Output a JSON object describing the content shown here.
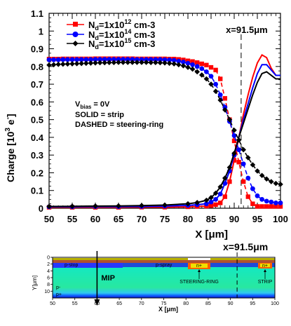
{
  "chart_data": [
    {
      "type": "line",
      "ylabel": "Charge [10",
      "ylabel_sup": "3",
      "ylabel_tail": " e",
      "ylabel_sup2": "-",
      "ylabel_end": "]",
      "xlabel": "X [μm]",
      "xlim": [
        50,
        100
      ],
      "ylim": [
        0,
        1.1
      ],
      "x_ticks": [
        "50",
        "55",
        "60",
        "65",
        "70",
        "75",
        "80",
        "85",
        "90",
        "95",
        "100"
      ],
      "y_ticks": [
        "0",
        "0.1",
        "0.2",
        "0.3",
        "0.4",
        "0.5",
        "0.6",
        "0.7",
        "0.8",
        "0.9",
        "1",
        "1.1"
      ],
      "grid": false,
      "legend": "top-left",
      "vline": {
        "x": 91.5,
        "label": "x=91.5μm"
      },
      "annotations": {
        "vbias_prefix": "V",
        "vbias_sub": "bias",
        "vbias_suffix": " = 0V",
        "solid": "SOLID = strip",
        "dashed": "DASHED = steering-ring"
      },
      "series": [
        {
          "name_prefix": "N",
          "name_sub": "d",
          "name_mid": "=1x10",
          "name_sup": "12",
          "name_unit": " cm-3",
          "color": "#ff0000",
          "marker": "square",
          "steering_ring": {
            "x": [
              50,
              51,
              52,
              53,
              54,
              55,
              56,
              57,
              58,
              59,
              60,
              61,
              62,
              63,
              64,
              65,
              66,
              67,
              68,
              69,
              70,
              71,
              72,
              73,
              74,
              75,
              76,
              77,
              78,
              79,
              80,
              81,
              82,
              83,
              84,
              85,
              86,
              87,
              88,
              89,
              90,
              91,
              92,
              93,
              94,
              95,
              96,
              97,
              98,
              99,
              100
            ],
            "y": [
              0.842,
              0.842,
              0.842,
              0.843,
              0.843,
              0.843,
              0.843,
              0.843,
              0.843,
              0.843,
              0.844,
              0.844,
              0.844,
              0.844,
              0.844,
              0.844,
              0.844,
              0.844,
              0.844,
              0.843,
              0.843,
              0.843,
              0.843,
              0.843,
              0.843,
              0.843,
              0.842,
              0.842,
              0.84,
              0.837,
              0.832,
              0.828,
              0.822,
              0.815,
              0.808,
              0.795,
              0.78,
              0.73,
              0.62,
              0.5,
              0.38,
              0.26,
              0.15,
              0.065,
              0.025,
              0.01,
              0.01,
              0.01,
              0.01,
              0.01,
              0.01
            ]
          },
          "strip": {
            "x": [
              50,
              55,
              60,
              65,
              70,
              75,
              80,
              82,
              84,
              85,
              86,
              87,
              88,
              89,
              90,
              91,
              92,
              93,
              94,
              95,
              96,
              97,
              98,
              99,
              100
            ],
            "y": [
              0.005,
              0.005,
              0.005,
              0.005,
              0.006,
              0.006,
              0.008,
              0.01,
              0.012,
              0.015,
              0.02,
              0.03,
              0.065,
              0.15,
              0.27,
              0.4,
              0.53,
              0.64,
              0.74,
              0.82,
              0.865,
              0.85,
              0.79,
              0.75,
              0.75
            ]
          }
        },
        {
          "name_prefix": "N",
          "name_sub": "d",
          "name_mid": "=1x10",
          "name_sup": "14",
          "name_unit": " cm-3",
          "color": "#0000ff",
          "marker": "circle",
          "steering_ring": {
            "x": [
              50,
              51,
              52,
              53,
              54,
              55,
              56,
              57,
              58,
              59,
              60,
              61,
              62,
              63,
              64,
              65,
              66,
              67,
              68,
              69,
              70,
              71,
              72,
              73,
              74,
              75,
              76,
              77,
              78,
              79,
              80,
              81,
              82,
              83,
              84,
              85,
              86,
              87,
              88,
              89,
              90,
              91,
              92,
              93,
              94,
              95,
              96,
              97,
              98,
              99,
              100
            ],
            "y": [
              0.838,
              0.838,
              0.838,
              0.839,
              0.839,
              0.839,
              0.839,
              0.839,
              0.839,
              0.839,
              0.84,
              0.84,
              0.84,
              0.84,
              0.84,
              0.84,
              0.84,
              0.84,
              0.84,
              0.839,
              0.839,
              0.839,
              0.839,
              0.839,
              0.839,
              0.838,
              0.837,
              0.835,
              0.83,
              0.825,
              0.818,
              0.81,
              0.8,
              0.788,
              0.77,
              0.745,
              0.7,
              0.64,
              0.57,
              0.49,
              0.41,
              0.33,
              0.25,
              0.17,
              0.11,
              0.07,
              0.05,
              0.04,
              0.035,
              0.03,
              0.03
            ]
          },
          "strip": {
            "x": [
              50,
              55,
              60,
              65,
              70,
              75,
              80,
              82,
              84,
              85,
              86,
              87,
              88,
              89,
              90,
              91,
              92,
              93,
              94,
              95,
              96,
              97,
              98,
              99,
              100
            ],
            "y": [
              0.008,
              0.008,
              0.009,
              0.009,
              0.01,
              0.012,
              0.016,
              0.02,
              0.025,
              0.035,
              0.05,
              0.08,
              0.14,
              0.21,
              0.3,
              0.4,
              0.5,
              0.59,
              0.68,
              0.76,
              0.81,
              0.81,
              0.78,
              0.75,
              0.75
            ]
          }
        },
        {
          "name_prefix": "N",
          "name_sub": "d",
          "name_mid": "=1x10",
          "name_sup": "15",
          "name_unit": " cm-3",
          "color": "#000000",
          "marker": "diamond",
          "steering_ring": {
            "x": [
              50,
              51,
              52,
              53,
              54,
              55,
              56,
              57,
              58,
              59,
              60,
              61,
              62,
              63,
              64,
              65,
              66,
              67,
              68,
              69,
              70,
              71,
              72,
              73,
              74,
              75,
              76,
              77,
              78,
              79,
              80,
              81,
              82,
              83,
              84,
              85,
              86,
              87,
              88,
              89,
              90,
              91,
              92,
              93,
              94,
              95,
              96,
              97,
              98,
              99,
              100
            ],
            "y": [
              0.808,
              0.81,
              0.812,
              0.813,
              0.814,
              0.815,
              0.816,
              0.817,
              0.818,
              0.819,
              0.82,
              0.821,
              0.821,
              0.822,
              0.822,
              0.823,
              0.823,
              0.823,
              0.823,
              0.823,
              0.823,
              0.823,
              0.822,
              0.822,
              0.821,
              0.82,
              0.818,
              0.815,
              0.81,
              0.804,
              0.795,
              0.785,
              0.77,
              0.752,
              0.73,
              0.7,
              0.66,
              0.61,
              0.555,
              0.5,
              0.44,
              0.385,
              0.33,
              0.285,
              0.245,
              0.21,
              0.185,
              0.165,
              0.15,
              0.14,
              0.135
            ]
          },
          "strip": {
            "x": [
              50,
              55,
              60,
              65,
              70,
              75,
              80,
              82,
              84,
              85,
              86,
              87,
              88,
              89,
              90,
              91,
              92,
              93,
              94,
              95,
              96,
              97,
              98,
              99,
              100
            ],
            "y": [
              0.01,
              0.011,
              0.012,
              0.013,
              0.015,
              0.018,
              0.025,
              0.032,
              0.045,
              0.06,
              0.085,
              0.12,
              0.17,
              0.23,
              0.31,
              0.4,
              0.48,
              0.56,
              0.64,
              0.71,
              0.76,
              0.77,
              0.75,
              0.73,
              0.73
            ]
          }
        }
      ]
    },
    {
      "type": "diagram",
      "ylabel": "Y[μm]",
      "xlabel": "X [μm]",
      "xlim": [
        50,
        100
      ],
      "ylim": [
        0,
        12
      ],
      "x_ticks": [
        "50",
        "55",
        "60",
        "65",
        "70",
        "75",
        "80",
        "85",
        "90",
        "95",
        "100"
      ],
      "y_ticks": [
        "0",
        "2",
        "4",
        "6",
        "8",
        "10"
      ],
      "vline": {
        "x": 91.5,
        "label": "x=91.5μm"
      },
      "mip": {
        "x": 60,
        "label": "MIP"
      },
      "labels": {
        "p_stop": "p-stop",
        "p_spray": "p-spray",
        "n_plus_1": "n+",
        "n_plus_2": "n+",
        "p_minus": "p-",
        "p_plus": "p+",
        "steering_ring": "STEERING-RING",
        "strip": "STRIP"
      }
    }
  ]
}
